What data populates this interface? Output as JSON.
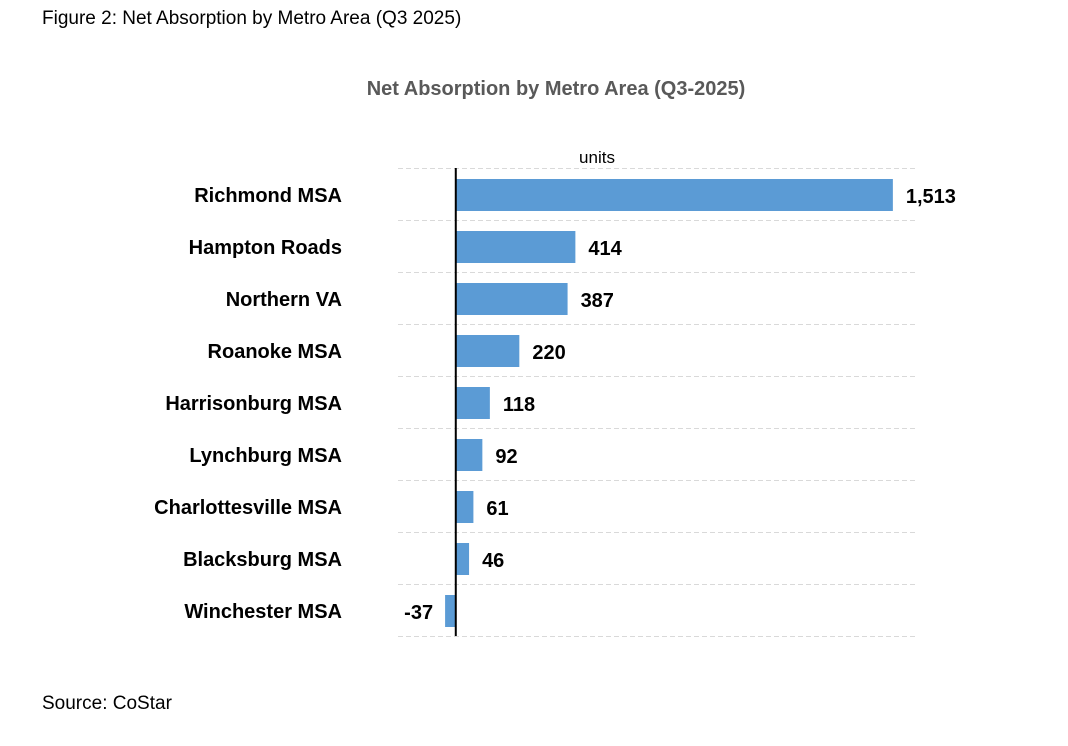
{
  "figure_caption": "Figure 2: Net Absorption by Metro Area (Q3 2025)",
  "source": "Source: CoStar",
  "chart_data": {
    "type": "bar",
    "orientation": "horizontal",
    "title": "Net Absorption by Metro Area (Q3-2025)",
    "xlabel": "units",
    "ylabel": "",
    "categories": [
      "Richmond MSA",
      "Hampton Roads",
      "Northern VA",
      "Roanoke MSA",
      "Harrisonburg MSA",
      "Lynchburg MSA",
      "Charlottesville MSA",
      "Blacksburg MSA",
      "Winchester MSA"
    ],
    "values": [
      1513,
      414,
      387,
      220,
      118,
      92,
      61,
      46,
      -37
    ],
    "value_labels": [
      "1,513",
      "414",
      "387",
      "220",
      "118",
      "92",
      "61",
      "46",
      "-37"
    ],
    "xlim": [
      -200,
      1600
    ],
    "grid": true,
    "legend": "none",
    "bar_color": "#5B9BD5"
  }
}
